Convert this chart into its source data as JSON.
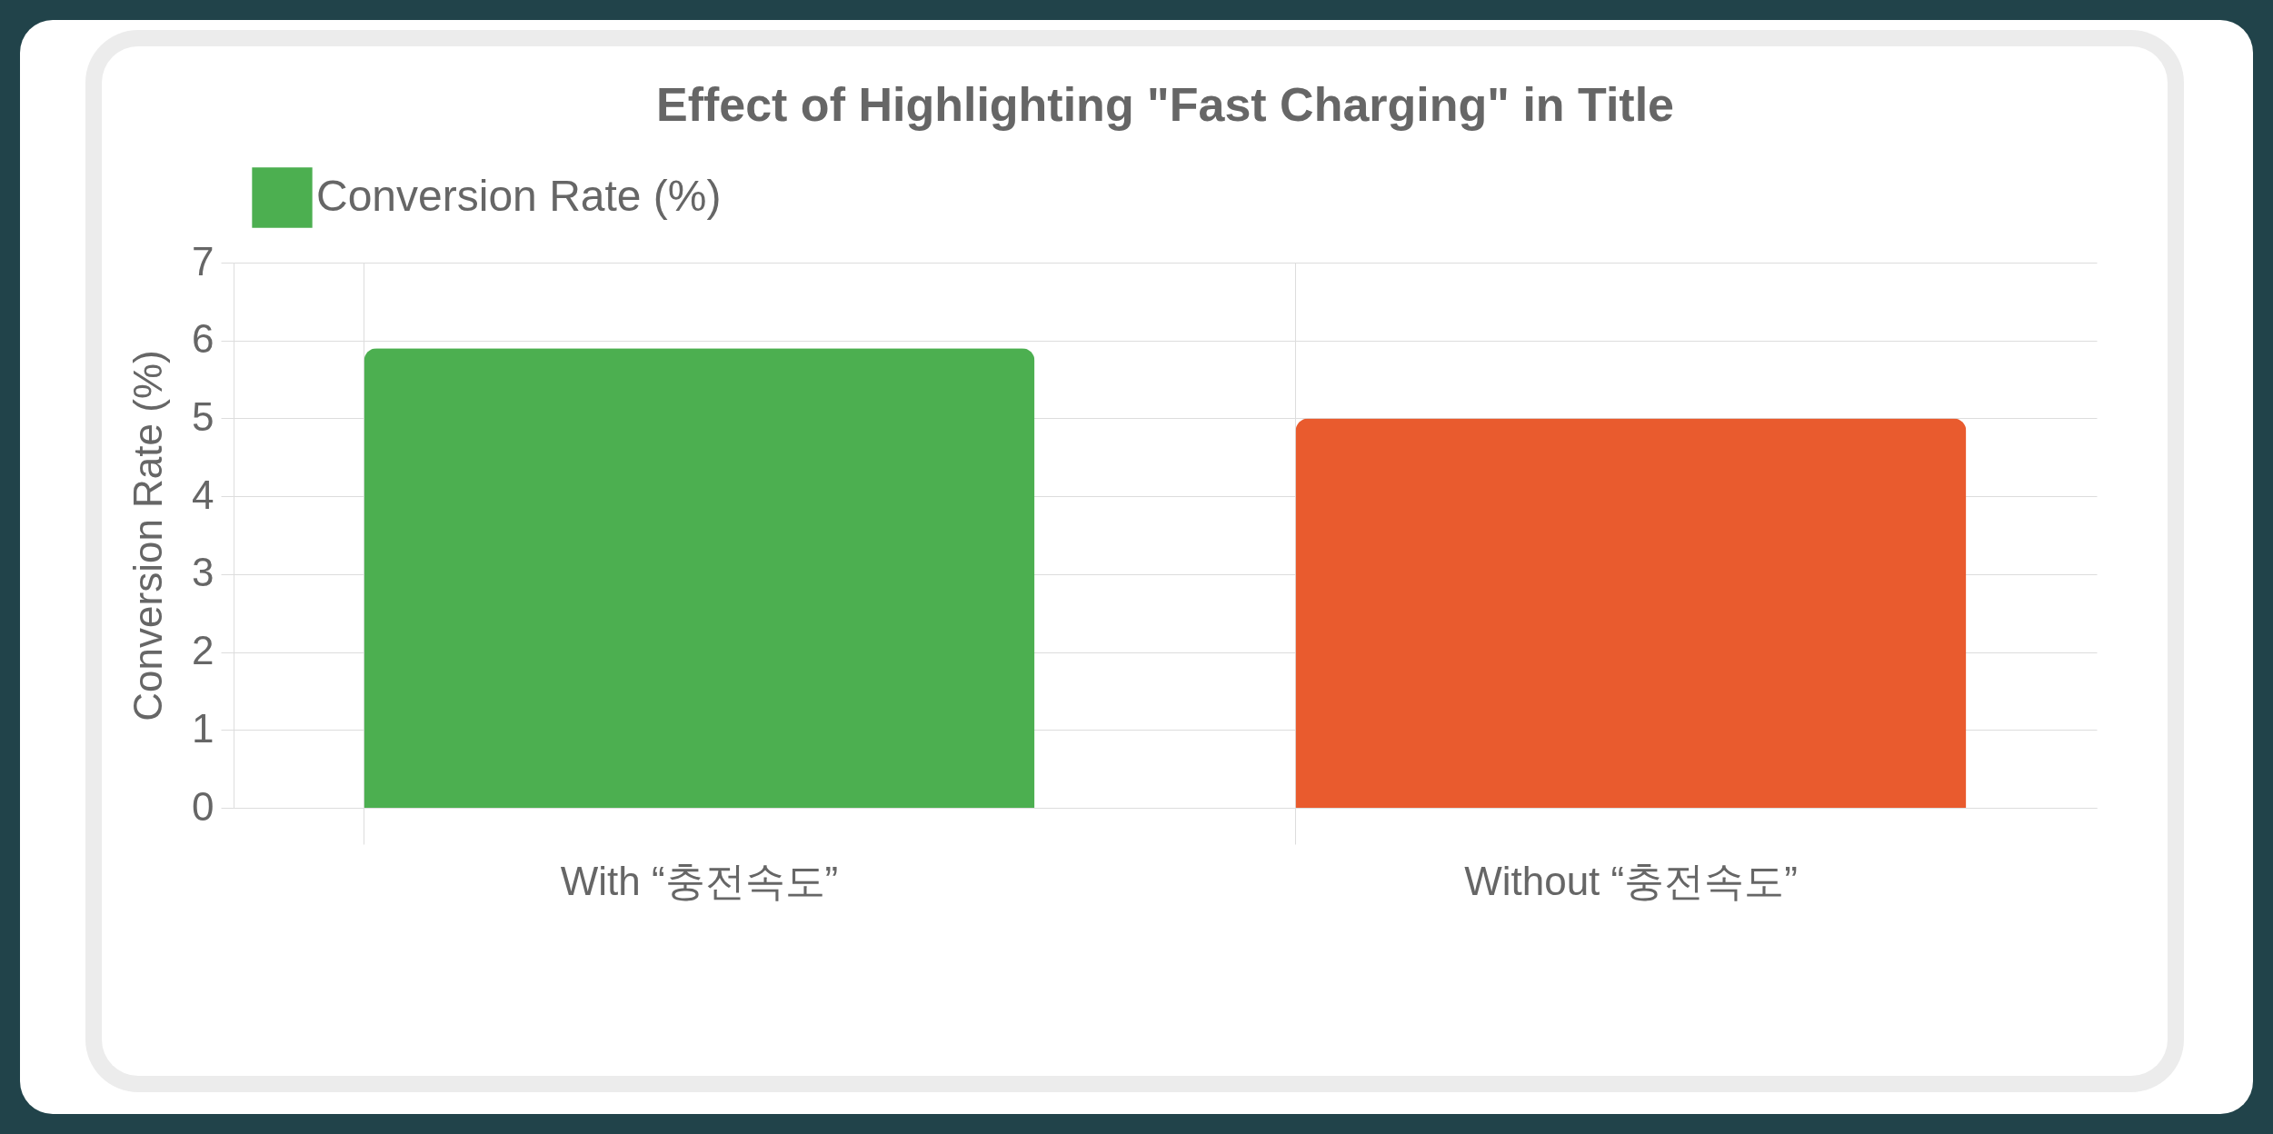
{
  "chart_data": {
    "type": "bar",
    "title": "Effect of Highlighting \"Fast Charging\" in Title",
    "categories": [
      "With “충전속도”",
      "Without “충전속도”"
    ],
    "series": [
      {
        "name": "Conversion Rate (%)",
        "colors": [
          "#4caf50",
          "#e95b2e"
        ],
        "values": [
          5.9,
          5.0
        ]
      }
    ],
    "ylabel": "Conversion Rate (%)",
    "ylim": [
      0,
      7
    ],
    "yticks": [
      0,
      1,
      2,
      3,
      4,
      5,
      6,
      7
    ],
    "grid": true,
    "legend": "top"
  }
}
